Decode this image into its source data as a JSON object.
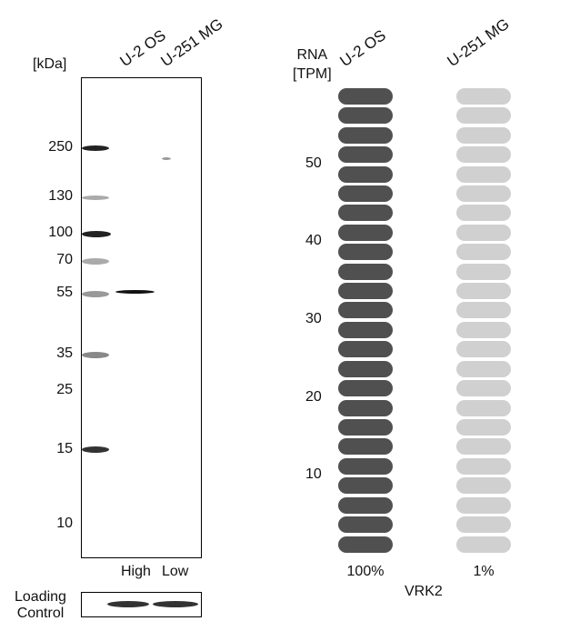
{
  "western_blot": {
    "unit_label": "[kDa]",
    "lanes": [
      "U-2 OS",
      "U-251 MG"
    ],
    "markers": [
      "250",
      "130",
      "100",
      "70",
      "55",
      "35",
      "25",
      "15",
      "10"
    ],
    "intensity_labels": [
      "High",
      "Low"
    ],
    "loading_control_label": [
      "Loading",
      "Control"
    ]
  },
  "chart_data": {
    "type": "bar",
    "title": "",
    "ylabel": [
      "RNA",
      "[TPM]"
    ],
    "yticks": [
      "10",
      "20",
      "30",
      "40",
      "50"
    ],
    "ylim": [
      0,
      60
    ],
    "categories": [
      "U-2 OS",
      "U-251 MG"
    ],
    "values": [
      60,
      0.6
    ],
    "percent_labels": [
      "100%",
      "1%"
    ],
    "xlabel": "VRK2",
    "colors": {
      "filled": "#505050",
      "empty": "#d0d0d0"
    }
  }
}
